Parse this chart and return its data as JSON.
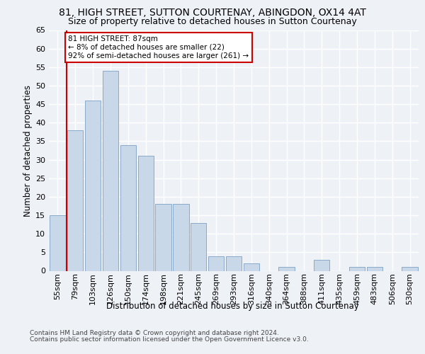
{
  "title1": "81, HIGH STREET, SUTTON COURTENAY, ABINGDON, OX14 4AT",
  "title2": "Size of property relative to detached houses in Sutton Courtenay",
  "xlabel": "Distribution of detached houses by size in Sutton Courtenay",
  "ylabel": "Number of detached properties",
  "categories": [
    "55sqm",
    "79sqm",
    "103sqm",
    "126sqm",
    "150sqm",
    "174sqm",
    "198sqm",
    "221sqm",
    "245sqm",
    "269sqm",
    "293sqm",
    "316sqm",
    "340sqm",
    "364sqm",
    "388sqm",
    "411sqm",
    "435sqm",
    "459sqm",
    "483sqm",
    "506sqm",
    "530sqm"
  ],
  "values": [
    15,
    38,
    46,
    54,
    34,
    31,
    18,
    18,
    13,
    4,
    4,
    2,
    0,
    1,
    0,
    3,
    0,
    1,
    1,
    0,
    1
  ],
  "bar_color": "#c8d8e8",
  "bar_edge_color": "#88aac8",
  "ref_line_color": "#cc0000",
  "ref_line_x": 0.5,
  "annotation_text": "81 HIGH STREET: 87sqm\n← 8% of detached houses are smaller (22)\n92% of semi-detached houses are larger (261) →",
  "annotation_box_color": "#ffffff",
  "annotation_box_edge": "#cc0000",
  "ylim": [
    0,
    65
  ],
  "yticks": [
    0,
    5,
    10,
    15,
    20,
    25,
    30,
    35,
    40,
    45,
    50,
    55,
    60,
    65
  ],
  "footer1": "Contains HM Land Registry data © Crown copyright and database right 2024.",
  "footer2": "Contains public sector information licensed under the Open Government Licence v3.0.",
  "bg_color": "#eef2f7",
  "grid_color": "#ffffff",
  "title1_fontsize": 10,
  "title2_fontsize": 9,
  "ylabel_fontsize": 8.5,
  "xlabel_fontsize": 8.5,
  "tick_fontsize": 8,
  "annot_fontsize": 7.5,
  "footer_fontsize": 6.5
}
